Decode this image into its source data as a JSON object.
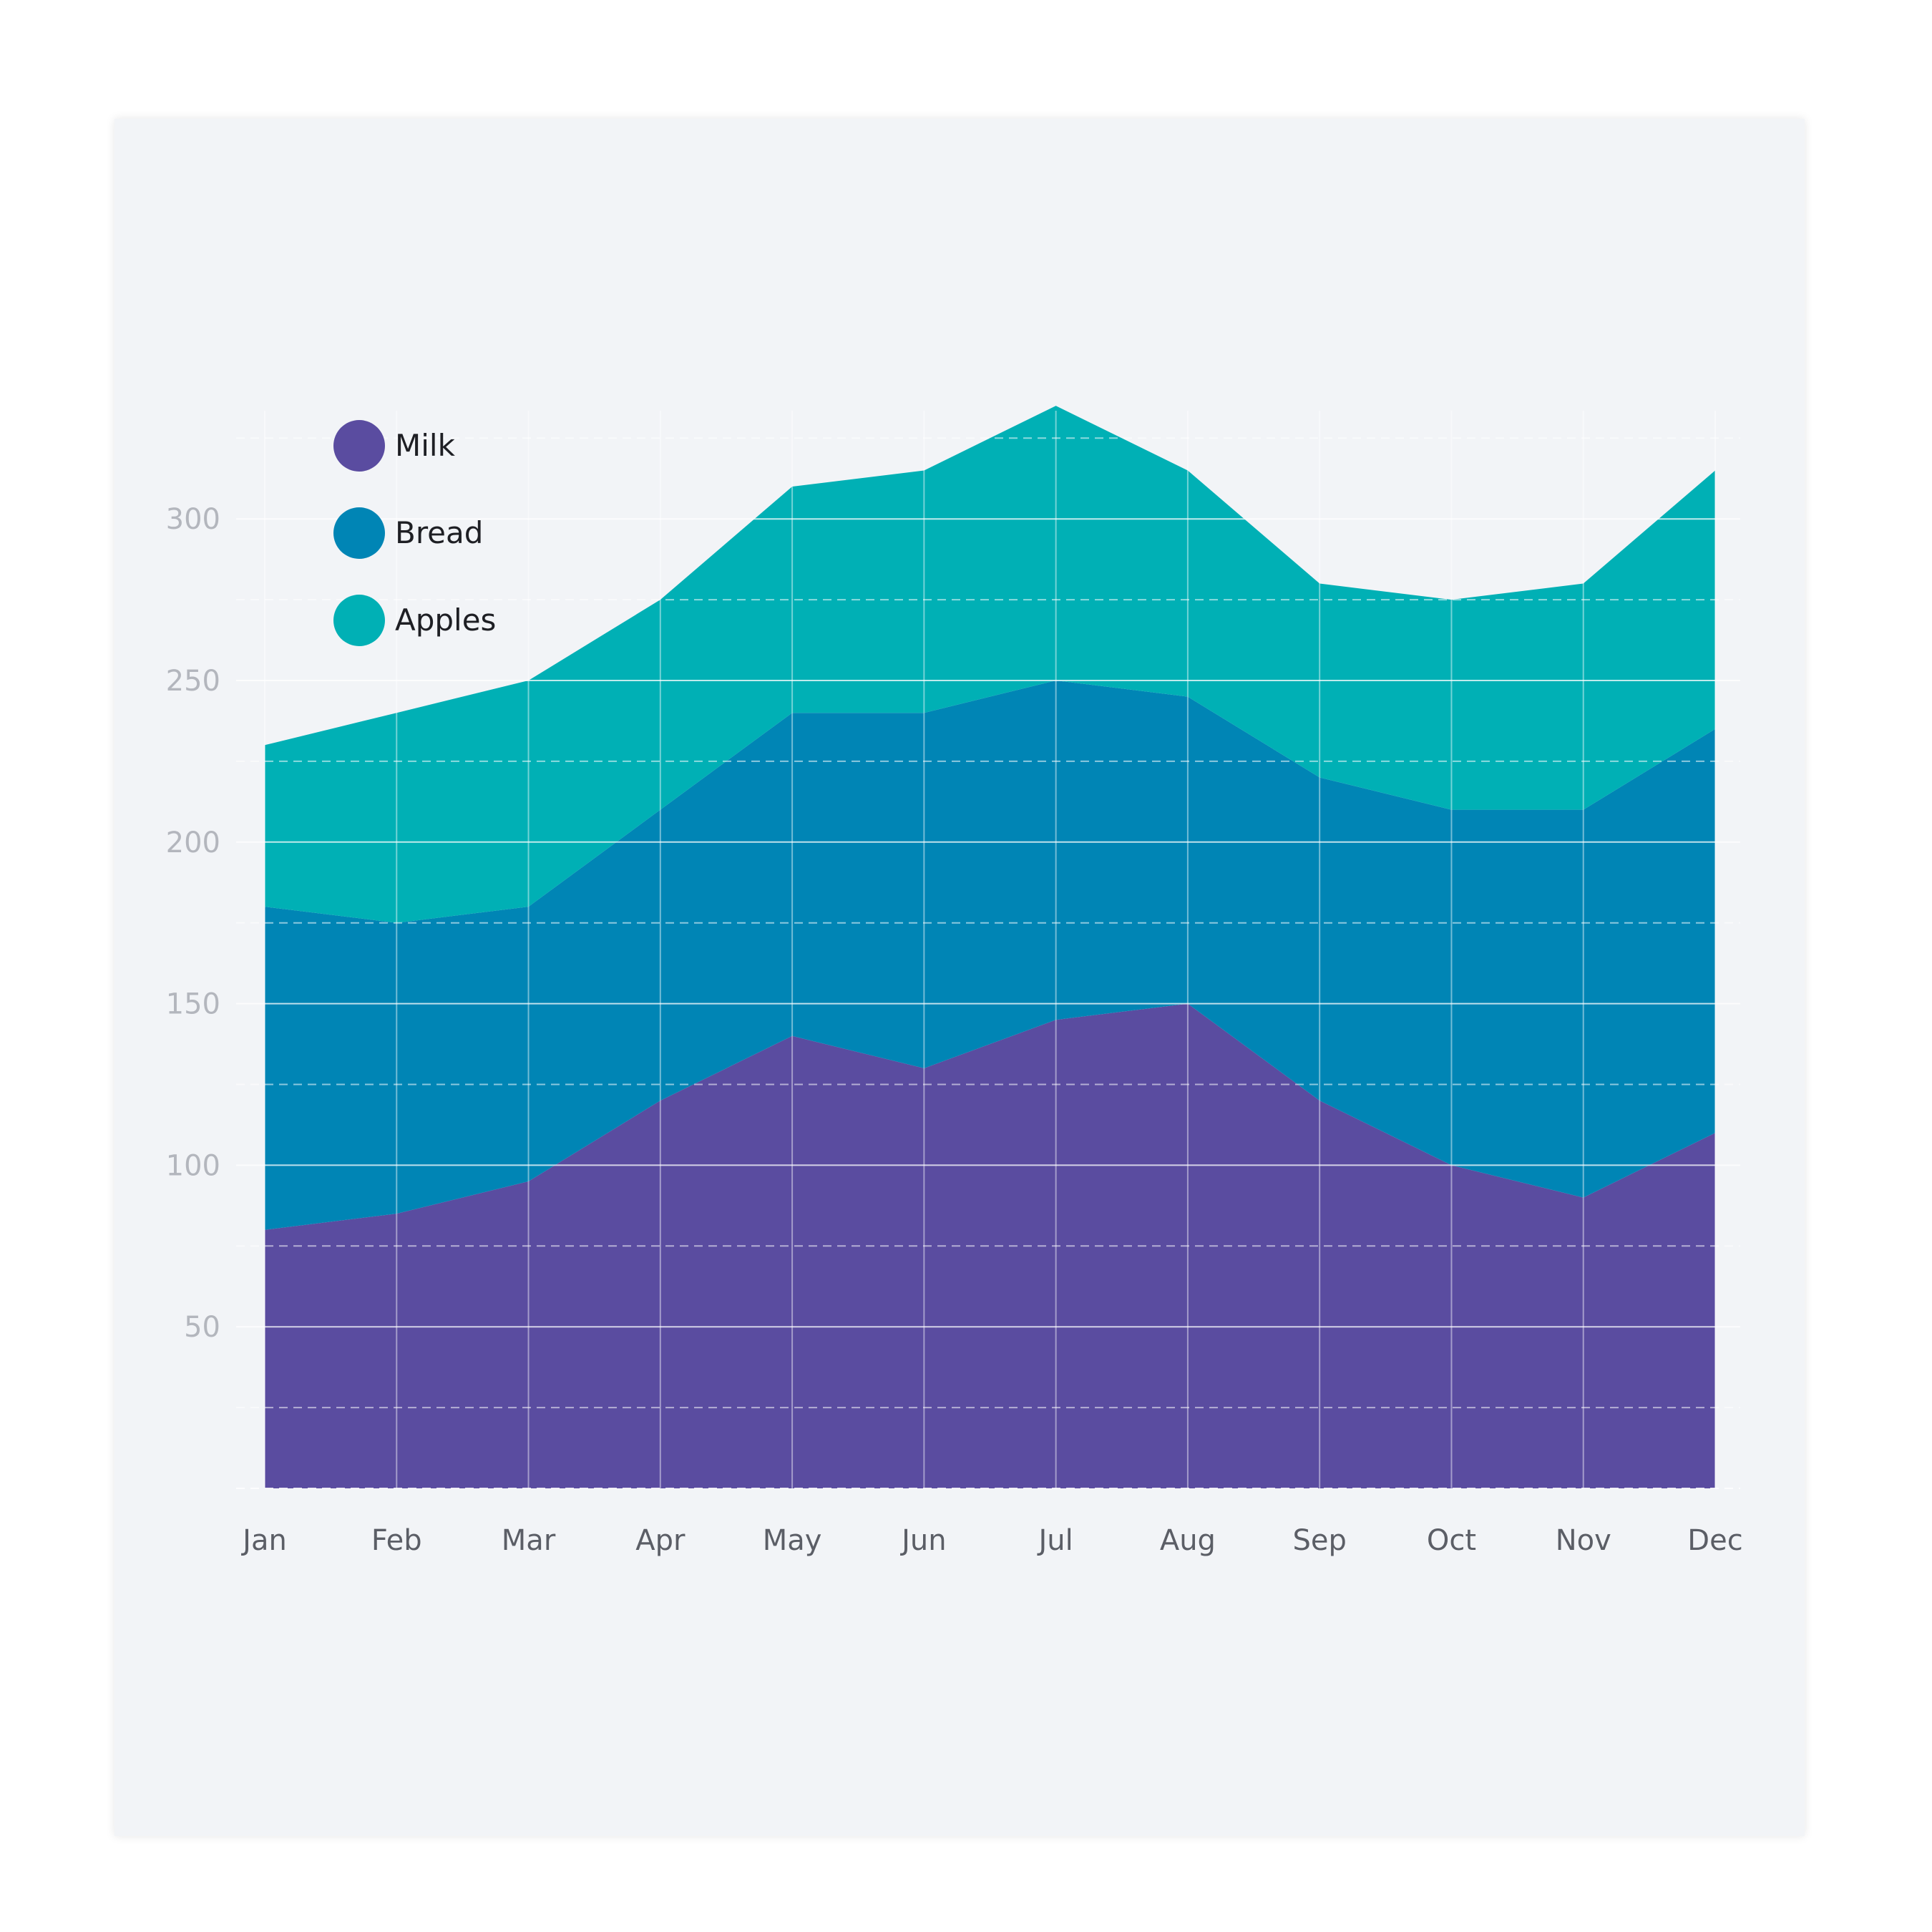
{
  "chart_data": {
    "type": "area",
    "stacked": true,
    "categories": [
      "Jan",
      "Feb",
      "Mar",
      "Apr",
      "May",
      "Jun",
      "Jul",
      "Aug",
      "Sep",
      "Oct",
      "Nov",
      "Dec"
    ],
    "series": [
      {
        "name": "Milk",
        "color": "#5a4ca0",
        "values": [
          80,
          85,
          95,
          120,
          140,
          130,
          145,
          150,
          120,
          100,
          90,
          110
        ]
      },
      {
        "name": "Bread",
        "color": "#0085b5",
        "values": [
          100,
          90,
          85,
          90,
          100,
          110,
          105,
          95,
          100,
          110,
          120,
          125
        ]
      },
      {
        "name": "Apples",
        "color": "#00b0b5",
        "values": [
          50,
          65,
          70,
          65,
          70,
          75,
          85,
          70,
          60,
          65,
          70,
          80
        ]
      }
    ],
    "y_ticks": [
      "50",
      "100",
      "150",
      "200",
      "250",
      "300"
    ],
    "ylim": [
      0,
      335
    ],
    "grid": true,
    "legend_position": "top-left",
    "title": "",
    "xlabel": "",
    "ylabel": ""
  }
}
